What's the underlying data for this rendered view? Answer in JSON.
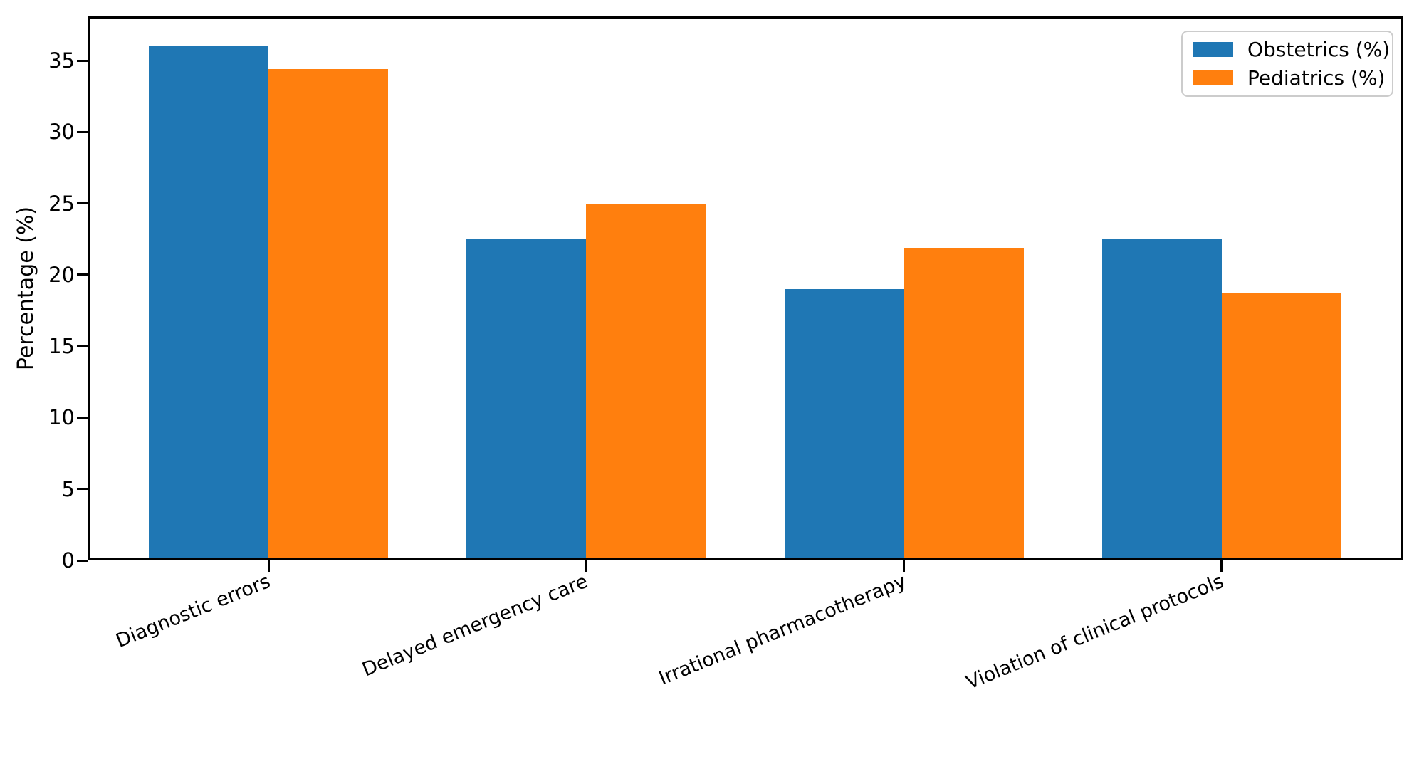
{
  "chart_data": {
    "type": "bar",
    "categories": [
      "Diagnostic errors",
      "Delayed emergency care",
      "Irrational pharmacotherapy",
      "Violation of clinical protocols"
    ],
    "series": [
      {
        "name": "Obstetrics (%)",
        "color": "#1f77b4",
        "values": [
          36.0,
          22.5,
          19.0,
          22.5
        ]
      },
      {
        "name": "Pediatrics (%)",
        "color": "#ff7f0e",
        "values": [
          34.4,
          25.0,
          21.9,
          18.7
        ]
      }
    ],
    "ylabel": "Percentage (%)",
    "yticks": [
      0,
      5,
      10,
      15,
      20,
      25,
      30,
      35
    ],
    "ylim": [
      0,
      38.1
    ],
    "grid": false,
    "legend_position": "upper-right",
    "axis_color": "#000000",
    "legend_border_color": "#cccccc",
    "background_color": "#ffffff"
  }
}
